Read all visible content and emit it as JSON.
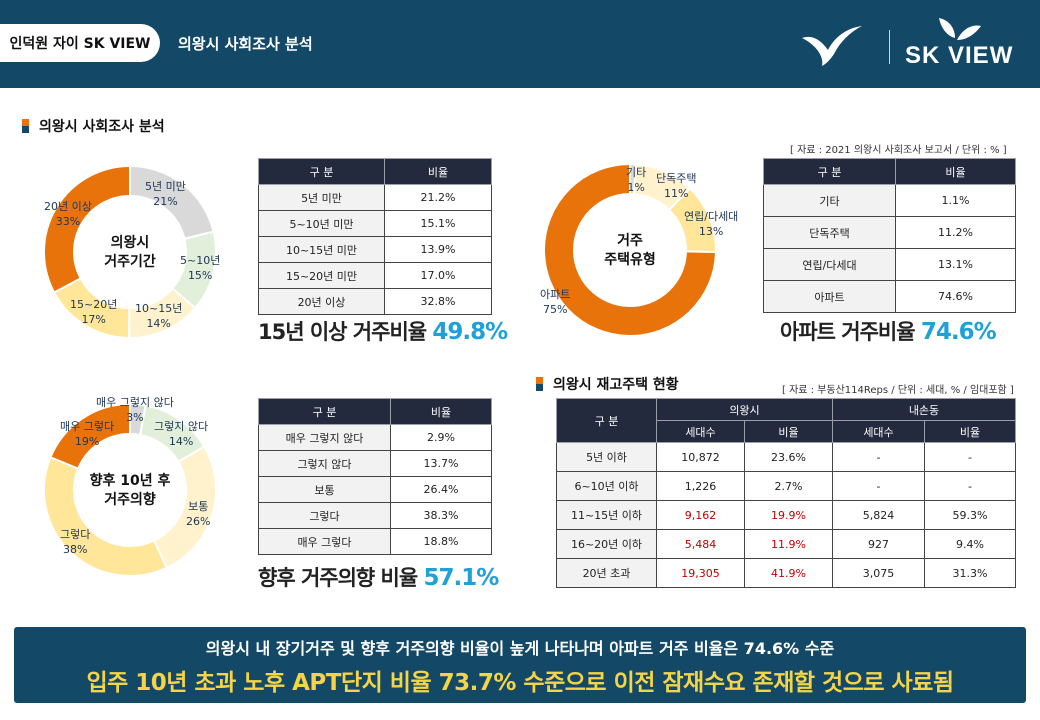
{
  "header": {
    "pill": "인덕원 자이 SK VIEW",
    "title": "의왕시 사회조사 분석",
    "logo_text": "SK VIEW"
  },
  "section1": {
    "title": "의왕시 사회조사 분석",
    "source": "[ 자료 : 2021 의왕시 사회조사 보고서 / 단위 : % ]"
  },
  "section2": {
    "title": "의왕시 재고주택 현황",
    "source": "[ 자료 : 부동산114Reps / 단위 : 세대, % / 임대포함 ]"
  },
  "residence_period": {
    "center_line1": "의왕시",
    "center_line2": "거주기간",
    "header_col1": "구 분",
    "header_col2": "비율",
    "rows": [
      {
        "label": "5년 미만",
        "value": "21.2%"
      },
      {
        "label": "5~10년 미만",
        "value": "15.1%"
      },
      {
        "label": "10~15년 미만",
        "value": "13.9%"
      },
      {
        "label": "15~20년 미만",
        "value": "17.0%"
      },
      {
        "label": "20년 이상",
        "value": "32.8%"
      }
    ],
    "donut_labels": [
      {
        "name": "5년 미만",
        "pct": "21%"
      },
      {
        "name": "5~10년",
        "pct": "15%"
      },
      {
        "name": "10~15년",
        "pct": "14%"
      },
      {
        "name": "15~20년",
        "pct": "17%"
      },
      {
        "name": "20년 이상",
        "pct": "33%"
      }
    ],
    "highlight_text": "15년 이상 거주비율 ",
    "highlight_pct": "49.8%"
  },
  "housing_type": {
    "center_line1": "거주",
    "center_line2": "주택유형",
    "header_col1": "구 분",
    "header_col2": "비율",
    "rows": [
      {
        "label": "기타",
        "value": "1.1%"
      },
      {
        "label": "단독주택",
        "value": "11.2%"
      },
      {
        "label": "연립/다세대",
        "value": "13.1%"
      },
      {
        "label": "아파트",
        "value": "74.6%"
      }
    ],
    "donut_labels": [
      {
        "name": "기타",
        "pct": "1%"
      },
      {
        "name": "단독주택",
        "pct": "11%"
      },
      {
        "name": "연립/다세대",
        "pct": "13%"
      },
      {
        "name": "아파트",
        "pct": "75%"
      }
    ],
    "highlight_text": "아파트 거주비율 ",
    "highlight_pct": "74.6%"
  },
  "future_intent": {
    "center_line1": "향후 10년 후",
    "center_line2": "거주의향",
    "header_col1": "구 분",
    "header_col2": "비율",
    "rows": [
      {
        "label": "매우 그렇지 않다",
        "value": "2.9%"
      },
      {
        "label": "그렇지 않다",
        "value": "13.7%"
      },
      {
        "label": "보통",
        "value": "26.4%"
      },
      {
        "label": "그렇다",
        "value": "38.3%"
      },
      {
        "label": "매우 그렇다",
        "value": "18.8%"
      }
    ],
    "donut_labels": [
      {
        "name": "매우 그렇지 않다",
        "pct": "3%"
      },
      {
        "name": "그렇지 않다",
        "pct": "14%"
      },
      {
        "name": "보통",
        "pct": "26%"
      },
      {
        "name": "그렇다",
        "pct": "38%"
      },
      {
        "name": "매우 그렇다",
        "pct": "19%"
      }
    ],
    "highlight_text": "향후 거주의향 비율 ",
    "highlight_pct": "57.1%"
  },
  "stock_table": {
    "h_category": "구 분",
    "h_uiwang": "의왕시",
    "h_naeson": "내손동",
    "h_households": "세대수",
    "h_ratio": "비율",
    "rows": [
      {
        "label": "5년 이하",
        "u_hh": "10,872",
        "u_ratio": "23.6%",
        "n_hh": "-",
        "n_ratio": "-",
        "red": false
      },
      {
        "label": "6~10년 이하",
        "u_hh": "1,226",
        "u_ratio": "2.7%",
        "n_hh": "-",
        "n_ratio": "-",
        "red": false
      },
      {
        "label": "11~15년 이하",
        "u_hh": "9,162",
        "u_ratio": "19.9%",
        "n_hh": "5,824",
        "n_ratio": "59.3%",
        "red": true
      },
      {
        "label": "16~20년 이하",
        "u_hh": "5,484",
        "u_ratio": "11.9%",
        "n_hh": "927",
        "n_ratio": "9.4%",
        "red": true
      },
      {
        "label": "20년 초과",
        "u_hh": "19,305",
        "u_ratio": "41.9%",
        "n_hh": "3,075",
        "n_ratio": "31.3%",
        "red": true
      }
    ]
  },
  "chart_data": [
    {
      "type": "pie",
      "categories": [
        "5년 미만",
        "5~10년",
        "10~15년",
        "15~20년",
        "20년 이상"
      ],
      "values": [
        21.2,
        15.1,
        13.9,
        17.0,
        32.8
      ],
      "colors": [
        "#d9d9d9",
        "#e2efda",
        "#fff2cc",
        "#ffe699",
        "#e8730b"
      ]
    },
    {
      "type": "pie",
      "categories": [
        "기타",
        "단독주택",
        "연립/다세대",
        "아파트"
      ],
      "values": [
        1.1,
        11.2,
        13.1,
        74.6
      ],
      "colors": [
        "#d9d9d9",
        "#fff2cc",
        "#ffe699",
        "#e8730b"
      ]
    },
    {
      "type": "pie",
      "categories": [
        "매우 그렇지 않다",
        "그렇지 않다",
        "보통",
        "그렇다",
        "매우 그렇다"
      ],
      "values": [
        2.9,
        13.7,
        26.4,
        38.3,
        18.8
      ],
      "colors": [
        "#d9d9d9",
        "#e2efda",
        "#fff2cc",
        "#ffe699",
        "#e8730b"
      ]
    }
  ],
  "banner": {
    "line1": "의왕시 내 장기거주 및 향후 거주의향 비율이 높게 나타나며 아파트 거주 비율은 74.6% 수준",
    "line2": "입주 10년 초과 노후 APT단지 비율 73.7% 수준으로 이전 잠재수요 존재할 것으로 사료됨"
  }
}
